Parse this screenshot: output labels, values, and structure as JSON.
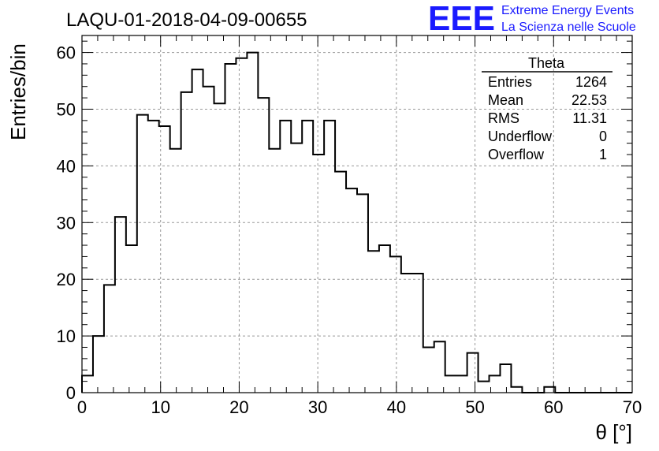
{
  "chart_data": {
    "type": "bar",
    "title": "LAQU-01-2018-04-09-00655",
    "xlabel": "θ [°]",
    "ylabel": "Entries/bin",
    "xlim": [
      0,
      70
    ],
    "ylim": [
      0,
      63
    ],
    "bin_width": 1.4,
    "values": [
      3,
      10,
      19,
      31,
      26,
      49,
      48,
      47,
      43,
      53,
      57,
      54,
      51,
      58,
      59,
      60,
      52,
      43,
      48,
      44,
      48,
      42,
      48,
      39,
      36,
      35,
      25,
      26,
      24,
      21,
      21,
      8,
      9,
      3,
      3,
      7,
      2,
      3,
      5,
      1,
      0,
      0,
      1,
      0,
      0,
      0,
      0,
      0,
      0,
      0
    ],
    "xticks": [
      0,
      10,
      20,
      30,
      40,
      50,
      60,
      70
    ],
    "yticks": [
      0,
      10,
      20,
      30,
      40,
      50,
      60
    ],
    "grid": true,
    "stats": {
      "name": "Theta",
      "rows": [
        {
          "label": "Entries",
          "value": "1264"
        },
        {
          "label": "Mean",
          "value": "22.53"
        },
        {
          "label": "RMS",
          "value": "11.31"
        },
        {
          "label": "Underflow",
          "value": "0"
        },
        {
          "label": "Overflow",
          "value": "1"
        }
      ]
    }
  },
  "logo": {
    "mark": "EEE",
    "line1": "Extreme Energy Events",
    "line2": "La Scienza nelle Scuole",
    "color": "#1a1aff"
  }
}
